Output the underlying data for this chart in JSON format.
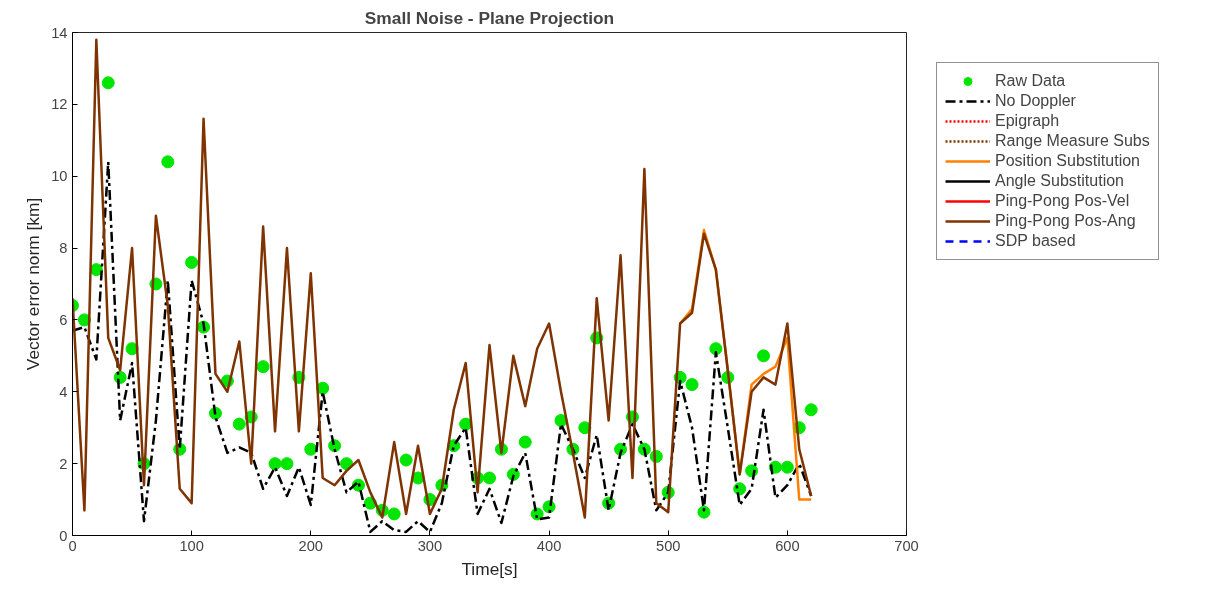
{
  "chart_data": {
    "type": "line",
    "title": "Small Noise - Plane Projection",
    "xlabel": "Time[s]",
    "ylabel": "Vector error norm [km]",
    "x": [
      0,
      10,
      20,
      30,
      40,
      50,
      60,
      70,
      80,
      90,
      100,
      110,
      120,
      130,
      140,
      150,
      160,
      170,
      180,
      190,
      200,
      210,
      220,
      230,
      240,
      250,
      260,
      270,
      280,
      290,
      300,
      310,
      320,
      330,
      340,
      350,
      360,
      370,
      380,
      390,
      400,
      410,
      420,
      430,
      440,
      450,
      460,
      470,
      480,
      490,
      500,
      510,
      520,
      530,
      540,
      550,
      560,
      570,
      580,
      590,
      600,
      610,
      620
    ],
    "xlim": [
      0,
      700
    ],
    "xticks": [
      0,
      100,
      200,
      300,
      400,
      500,
      600,
      700
    ],
    "ylim": [
      0,
      14
    ],
    "yticks": [
      0,
      2,
      4,
      6,
      8,
      10,
      12,
      14
    ],
    "grid": false,
    "legend": "top right",
    "series": [
      {
        "name": "Raw Data",
        "type": "scatter",
        "marker": "circle",
        "color": "#00e600",
        "values": [
          6.4,
          6.0,
          7.4,
          12.6,
          4.4,
          5.2,
          2.0,
          7.0,
          10.4,
          2.4,
          7.6,
          5.8,
          3.4,
          4.3,
          3.1,
          3.3,
          4.7,
          2.0,
          2.0,
          4.4,
          2.4,
          4.1,
          2.5,
          2.0,
          1.4,
          0.9,
          0.7,
          0.6,
          2.1,
          1.6,
          1.0,
          1.4,
          2.5,
          3.1,
          1.6,
          1.6,
          2.4,
          1.7,
          2.6,
          0.6,
          0.8,
          3.2,
          2.4,
          3.0,
          5.5,
          0.9,
          2.4,
          3.3,
          2.4,
          2.2,
          1.2,
          4.4,
          4.2,
          0.65,
          5.2,
          4.4,
          1.3,
          1.8,
          5.0,
          1.9,
          1.9,
          3.0,
          3.5
        ]
      },
      {
        "name": "No Doppler",
        "line_style": "dashdot",
        "color": "#000000",
        "values": [
          5.7,
          5.8,
          4.9,
          10.4,
          3.2,
          4.8,
          0.4,
          3.2,
          7.1,
          2.4,
          7.1,
          5.9,
          3.3,
          2.3,
          2.45,
          2.3,
          1.3,
          1.9,
          1.1,
          1.9,
          0.85,
          4.0,
          2.4,
          1.2,
          1.5,
          0.1,
          0.4,
          0.15,
          0.1,
          0.4,
          0.1,
          0.9,
          2.5,
          3.0,
          0.6,
          1.3,
          0.35,
          1.65,
          2.3,
          0.45,
          0.5,
          3.1,
          2.4,
          1.6,
          2.8,
          0.7,
          2.3,
          3.1,
          2.4,
          0.7,
          1.2,
          4.3,
          3.0,
          0.7,
          5.1,
          3.0,
          0.85,
          1.3,
          3.5,
          1.05,
          1.4,
          2.0,
          1.1
        ]
      },
      {
        "name": "Epigraph",
        "line_style": "dotted",
        "color": "#ff0000",
        "values": [
          null,
          null,
          null,
          null,
          null,
          null,
          null,
          null,
          null,
          null,
          null,
          null,
          null,
          null,
          null,
          null,
          null,
          null,
          null,
          null,
          null,
          null,
          null,
          null,
          null,
          null,
          null,
          null,
          null,
          null,
          null,
          null,
          null,
          null,
          null,
          null,
          null,
          null,
          null,
          null,
          null,
          null,
          null,
          null,
          null,
          null,
          null,
          null,
          null,
          null,
          null,
          null,
          null,
          null,
          null,
          null,
          null,
          null,
          null,
          null,
          null,
          null,
          null
        ]
      },
      {
        "name": "Range Measure Subs",
        "line_style": "dotted",
        "color": "#7f3300",
        "values": [
          null,
          null,
          null,
          null,
          null,
          null,
          null,
          null,
          null,
          null,
          null,
          null,
          null,
          null,
          null,
          null,
          null,
          null,
          null,
          null,
          null,
          null,
          null,
          null,
          null,
          null,
          null,
          null,
          null,
          null,
          null,
          null,
          null,
          null,
          null,
          null,
          null,
          null,
          null,
          null,
          null,
          null,
          null,
          null,
          null,
          null,
          null,
          null,
          null,
          null,
          null,
          null,
          null,
          null,
          null,
          null,
          null,
          null,
          null,
          null,
          null,
          null,
          null
        ]
      },
      {
        "name": "Position Substitution",
        "line_style": "solid",
        "color": "#ff8000",
        "values": [
          null,
          null,
          null,
          null,
          null,
          null,
          null,
          null,
          null,
          null,
          null,
          null,
          null,
          null,
          null,
          null,
          null,
          null,
          null,
          null,
          null,
          null,
          null,
          null,
          null,
          null,
          null,
          null,
          null,
          null,
          null,
          null,
          null,
          null,
          null,
          null,
          null,
          null,
          null,
          null,
          null,
          null,
          null,
          null,
          null,
          null,
          null,
          null,
          null,
          null,
          null,
          5.9,
          6.3,
          8.5,
          7.4,
          4.6,
          1.7,
          4.2,
          4.5,
          4.7,
          5.5,
          1.0,
          1.0
        ]
      },
      {
        "name": "Angle Substitution",
        "line_style": "solid",
        "color": "#000000",
        "values": [
          null,
          null,
          null,
          null,
          null,
          null,
          null,
          null,
          null,
          null,
          null,
          null,
          null,
          null,
          null,
          null,
          null,
          null,
          null,
          null,
          null,
          null,
          null,
          null,
          null,
          null,
          null,
          null,
          null,
          null,
          null,
          null,
          null,
          null,
          null,
          null,
          null,
          null,
          null,
          null,
          null,
          null,
          null,
          null,
          null,
          null,
          null,
          null,
          null,
          null,
          null,
          null,
          null,
          null,
          null,
          null,
          null,
          null,
          null,
          null,
          null,
          null,
          null
        ]
      },
      {
        "name": "Ping-Pong Pos-Vel",
        "line_style": "solid",
        "color": "#ff0000",
        "values": [
          null,
          null,
          null,
          null,
          null,
          null,
          null,
          null,
          null,
          null,
          null,
          null,
          null,
          null,
          null,
          null,
          null,
          null,
          null,
          null,
          null,
          null,
          null,
          null,
          null,
          null,
          null,
          null,
          null,
          null,
          null,
          null,
          null,
          null,
          null,
          null,
          null,
          null,
          null,
          null,
          null,
          null,
          null,
          null,
          null,
          null,
          null,
          null,
          null,
          null,
          null,
          null,
          null,
          null,
          null,
          null,
          null,
          null,
          null,
          null,
          null,
          null,
          null
        ]
      },
      {
        "name": "Ping-Pong Pos-Ang",
        "line_style": "solid",
        "color": "#7f3300",
        "values": [
          6.6,
          0.7,
          13.8,
          5.5,
          4.6,
          8.0,
          1.4,
          8.9,
          6.4,
          1.3,
          0.9,
          11.6,
          4.5,
          4.0,
          5.4,
          2.0,
          8.6,
          2.9,
          8.0,
          2.9,
          7.3,
          1.6,
          1.4,
          1.8,
          2.1,
          1.2,
          0.5,
          2.6,
          0.6,
          2.5,
          0.6,
          1.3,
          3.5,
          4.8,
          1.2,
          5.3,
          2.3,
          5.0,
          3.6,
          5.2,
          5.9,
          4.0,
          2.3,
          0.5,
          6.6,
          3.2,
          7.8,
          1.6,
          10.2,
          0.9,
          0.65,
          5.9,
          6.2,
          8.4,
          7.4,
          4.6,
          1.7,
          4.0,
          4.4,
          4.2,
          5.9,
          2.4,
          1.1
        ]
      },
      {
        "name": "SDP based",
        "line_style": "dashed",
        "color": "#0000ff",
        "values": [
          null,
          null,
          null,
          null,
          null,
          null,
          null,
          null,
          null,
          null,
          null,
          null,
          null,
          null,
          null,
          null,
          null,
          null,
          null,
          null,
          null,
          null,
          null,
          null,
          null,
          null,
          null,
          null,
          null,
          null,
          null,
          null,
          null,
          null,
          null,
          null,
          null,
          null,
          null,
          null,
          null,
          null,
          null,
          null,
          null,
          null,
          null,
          null,
          null,
          null,
          null,
          null,
          null,
          null,
          null,
          null,
          null,
          null,
          null,
          null,
          null,
          null,
          null
        ]
      }
    ]
  }
}
